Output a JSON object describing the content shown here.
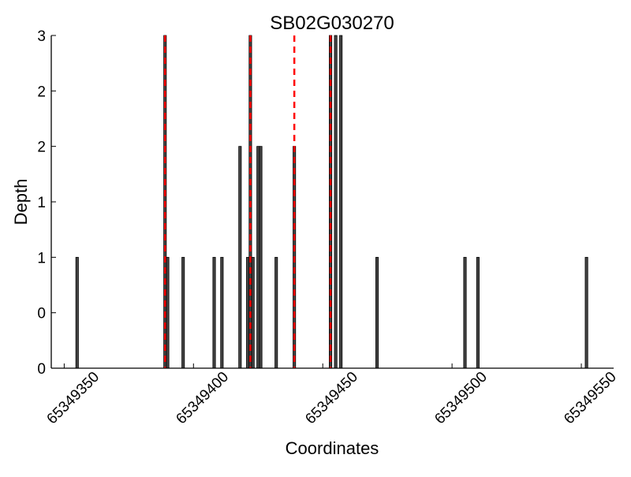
{
  "chart_data": {
    "type": "bar",
    "title": "SB02G030270",
    "xlabel": "Coordinates",
    "ylabel": "Depth",
    "xlim": [
      65349345,
      65349562.5
    ],
    "ylim": [
      0,
      3
    ],
    "xticks": [
      65349350,
      65349400,
      65349450,
      65349500,
      65349550
    ],
    "xtick_labels": [
      "65349350",
      "65349400",
      "65349450",
      "65349500",
      "65349550"
    ],
    "yticks": [
      0,
      0.5,
      1,
      1.5,
      2,
      2.5,
      3
    ],
    "ytick_labels": [
      "0",
      "0",
      "1",
      "1",
      "2",
      "2",
      "3"
    ],
    "grid": false,
    "bar_color": "#444444",
    "bar_edge_color": "#000000",
    "marker_line_color": "#ff0000",
    "x": [
      65349355,
      65349389,
      65349390,
      65349396,
      65349408,
      65349411,
      65349418,
      65349421,
      65349422,
      65349423,
      65349425,
      65349426,
      65349432,
      65349439,
      65349453,
      65349455,
      65349457,
      65349471,
      65349505,
      65349510,
      65349552
    ],
    "values": [
      1,
      3,
      1,
      1,
      1,
      1,
      2,
      1,
      3,
      1,
      2,
      2,
      1,
      2,
      3,
      3,
      3,
      1,
      1,
      1,
      1
    ],
    "marker_lines_x": [
      65349389,
      65349422,
      65349439,
      65349453
    ]
  }
}
